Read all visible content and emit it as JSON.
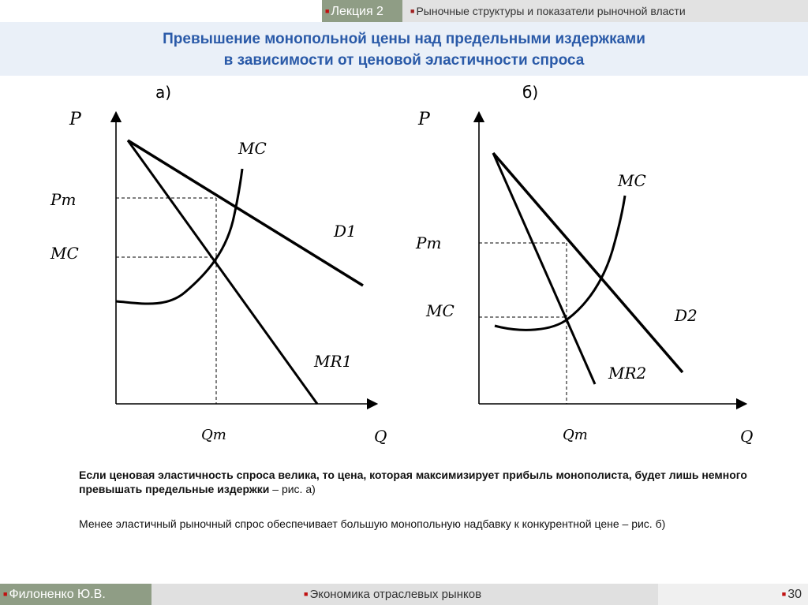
{
  "header": {
    "lecture": "Лекция 2",
    "topic": "Рыночные структуры и показатели рыночной власти"
  },
  "title": {
    "line1": "Превышение монопольной цены над предельными издержками",
    "line2": "в зависимости от ценовой эластичности спроса"
  },
  "diagram_a": {
    "panel_label": "а)",
    "y_axis": "P",
    "x_axis": "Q",
    "price_label": "Pm",
    "cost_label": "MC",
    "mc_curve": "MC",
    "demand": "D1",
    "marginal_revenue": "MR1",
    "quantity": "Qm"
  },
  "diagram_b": {
    "panel_label": "б)",
    "y_axis": "P",
    "x_axis": "Q",
    "price_label": "Pm",
    "cost_label": "MC",
    "mc_curve": "MC",
    "demand": "D2",
    "marginal_revenue": "MR2",
    "quantity": "Qm"
  },
  "text": {
    "para1_bold": "Если ценовая эластичность спроса велика, то цена, которая максимизирует прибыль монополиста, будет лишь немного превышать предельные издержки",
    "para1_rest": " – рис. а)",
    "para2": "Менее эластичный рыночный спрос обеспечивает большую монопольную надбавку к конкурентной цене – рис. б)"
  },
  "footer": {
    "author": "Филоненко Ю.В.",
    "course": "Экономика отраслевых рынков",
    "page": "30"
  },
  "colors": {
    "accent_title": "#2a5aa8",
    "header_green": "#8f9d85",
    "bullet_red": "#c01010"
  }
}
